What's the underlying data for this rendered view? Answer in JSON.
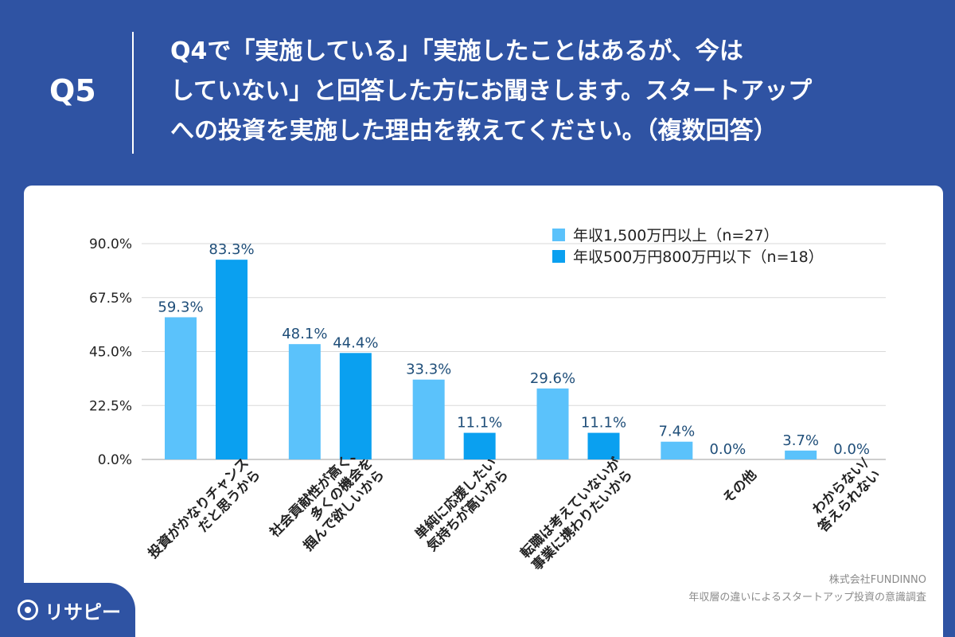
{
  "header": {
    "question_number": "Q5",
    "question_lines": [
      "Q4で「実施している」「実施したことはあるが、今は",
      "していない」と回答した方にお聞きします。スタートアップ",
      "への投資を実施した理由を教えてください。（複数回答）"
    ]
  },
  "footer": {
    "logo_text": "リサピー",
    "source_lines": [
      "株式会社FUNDINNO",
      "年収層の違いによるスタートアップ投資の意識調査"
    ]
  },
  "chart_data": {
    "type": "bar",
    "title": "",
    "xlabel": "",
    "ylabel": "",
    "ylim": [
      0,
      90
    ],
    "y_ticks": [
      "0.0%",
      "22.5%",
      "45.0%",
      "67.5%",
      "90.0%"
    ],
    "grid": true,
    "legend_position": "top-right",
    "categories": [
      [
        "投資がかなりチャンス",
        "だと思うから"
      ],
      [
        "社会貢献性が高く、",
        "多くの機会を",
        "掴んで欲しいから"
      ],
      [
        "単純に応援したい",
        "気持ちが高いから"
      ],
      [
        "転職は考えていないが",
        "事業に携わりたいから"
      ],
      [
        "その他"
      ],
      [
        "わからない/",
        "答えられない"
      ]
    ],
    "series": [
      {
        "name": "年収1,500万円以上（n=27）",
        "color": "#5bc2fb",
        "values": [
          59.3,
          48.1,
          33.3,
          29.6,
          7.4,
          3.7
        ],
        "labels": [
          "59.3%",
          "48.1%",
          "33.3%",
          "29.6%",
          "7.4%",
          "3.7%"
        ]
      },
      {
        "name": "年収500万円800万円以下（n=18）",
        "color": "#0aa0f0",
        "values": [
          83.3,
          44.4,
          11.1,
          11.1,
          0.0,
          0.0
        ],
        "labels": [
          "83.3%",
          "44.4%",
          "11.1%",
          "11.1%",
          "0.0%",
          "0.0%"
        ]
      }
    ],
    "label_color": "#1f4e79",
    "gridline_color": "#d9d9d9"
  }
}
